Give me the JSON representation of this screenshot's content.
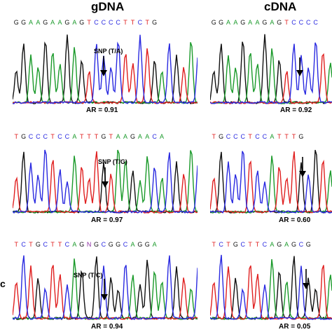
{
  "headers": {
    "left": "gDNA",
    "right": "cDNA"
  },
  "colors": {
    "A": "#1a9a2a",
    "C": "#2a2ae0",
    "G": "#111111",
    "T": "#e02020",
    "N": "#8a2aa0"
  },
  "rows": [
    {
      "left": {
        "sequence": "GGAAGAAGAGTCCCCTTCTG",
        "snp_label": "SNP (T/A)",
        "ar": "AR = 0.91"
      },
      "right": {
        "sequence": "GGAAGAAGAGTCCCC",
        "ar": "AR = 0.92"
      }
    },
    {
      "left": {
        "sequence": "TGCCCTCCATTTGTAAGAACA",
        "snp_label": "SNP (T/G)",
        "ar": "AR = 0.97"
      },
      "right": {
        "sequence": "TGCCCTCCATTTG",
        "ar": "AR = 0.60"
      }
    },
    {
      "left": {
        "sequence": "TCTGCTTCAGNGCGGCAGGA",
        "snp_label": "SNP (T/C)",
        "ar": "AR = 0.94"
      },
      "right": {
        "sequence": "TCTGCTTCAGAGCG",
        "ar": "AR = 0.05"
      }
    }
  ],
  "panel_letter": "c"
}
